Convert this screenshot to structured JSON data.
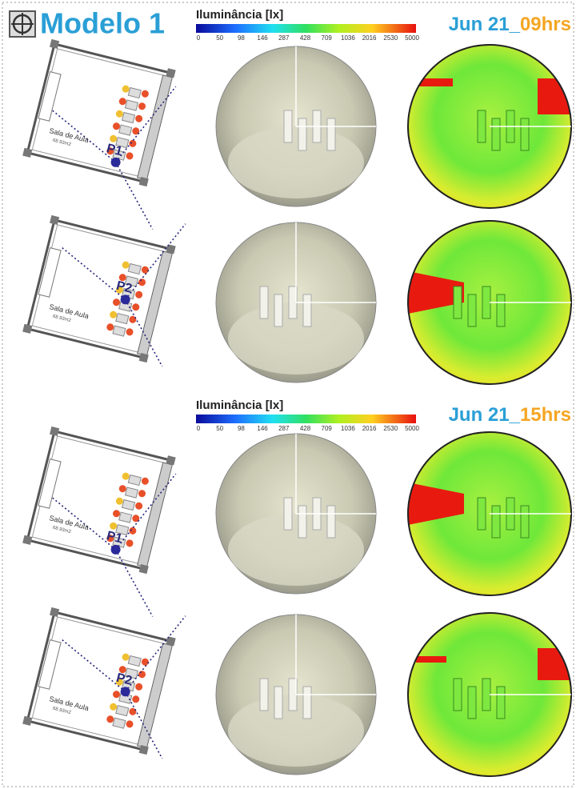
{
  "header": {
    "title": "Modelo 1"
  },
  "sections": [
    {
      "legend": {
        "title": "Iluminância [lx]",
        "ticks": [
          0,
          50,
          98,
          146,
          287,
          428,
          709,
          1036,
          2016,
          2530,
          5000
        ]
      },
      "date": "Jun 21_",
      "time": "09hrs",
      "rows": [
        {
          "room": "Sala de Aula",
          "area": "68.93m2",
          "point": "P1"
        },
        {
          "room": "Sala de Aula",
          "area": "68.93m2",
          "point": "P2"
        }
      ]
    },
    {
      "legend": {
        "title": "Iluminância [lx]",
        "ticks": [
          0,
          50,
          98,
          146,
          287,
          428,
          709,
          1036,
          2016,
          2530,
          5000
        ]
      },
      "date": "Jun 21_",
      "time": "15hrs",
      "rows": [
        {
          "room": "Sala de Aula",
          "area": "68.93m2",
          "point": "P1"
        },
        {
          "room": "Sala de Aula",
          "area": "68.93m2",
          "point": "P2"
        }
      ]
    }
  ]
}
